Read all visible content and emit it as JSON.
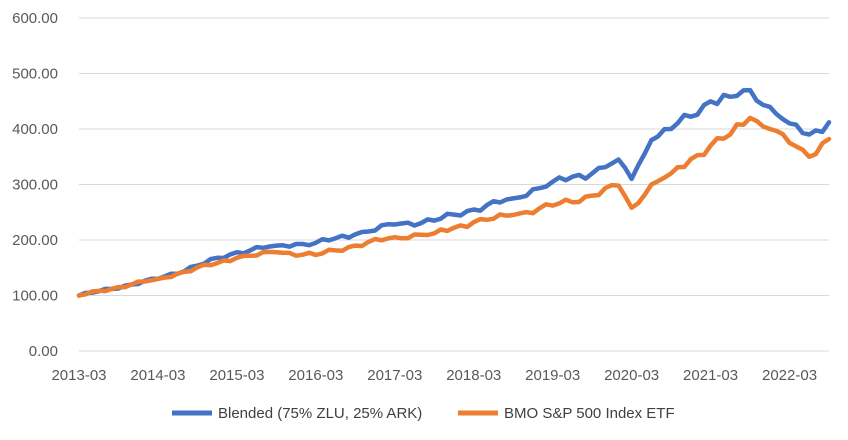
{
  "chart_data": {
    "type": "line",
    "title": "",
    "xlabel": "",
    "ylabel": "",
    "ylim": [
      0,
      600
    ],
    "y_ticks": [
      "0.00",
      "100.00",
      "200.00",
      "300.00",
      "400.00",
      "500.00",
      "600.00"
    ],
    "x_ticks": [
      "2013-03",
      "2014-03",
      "2015-03",
      "2016-03",
      "2017-03",
      "2018-03",
      "2019-03",
      "2020-03",
      "2021-03",
      "2022-03"
    ],
    "x_range": [
      "2013-03",
      "2022-09"
    ],
    "grid": "horizontal",
    "legend_position": "bottom",
    "x_anchors": [
      "2013-03",
      "2014-03",
      "2015-03",
      "2015-09",
      "2016-03",
      "2016-09",
      "2017-03",
      "2017-09",
      "2018-03",
      "2018-09",
      "2019-03",
      "2019-09",
      "2020-01",
      "2020-03",
      "2020-06",
      "2020-09",
      "2021-03",
      "2021-06",
      "2021-09",
      "2021-12",
      "2022-03",
      "2022-06",
      "2022-09"
    ],
    "series": [
      {
        "name": "Blended (75% ZLU, 25% ARK)",
        "color": "#4472C4",
        "values": [
          100,
          130,
          178,
          190,
          195,
          210,
          228,
          235,
          255,
          275,
          305,
          320,
          345,
          310,
          380,
          400,
          450,
          458,
          470,
          440,
          410,
          390,
          412
        ]
      },
      {
        "name": "BMO S&P 500 Index ETF",
        "color": "#ED7D31",
        "values": [
          100,
          130,
          168,
          178,
          173,
          190,
          205,
          212,
          232,
          245,
          262,
          280,
          298,
          258,
          300,
          320,
          370,
          390,
          420,
          400,
          375,
          350,
          382
        ]
      }
    ]
  }
}
